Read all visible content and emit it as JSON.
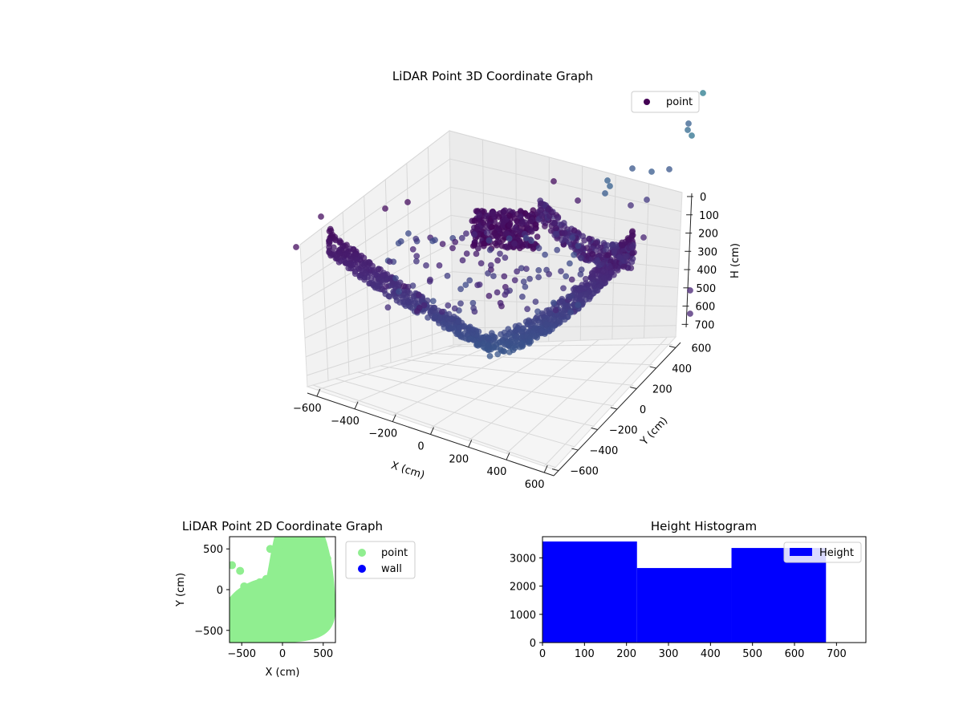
{
  "chart_data": [
    {
      "type": "scatter3d",
      "title": "LiDAR Point 3D Coordinate Graph",
      "xlabel": "X (cm)",
      "ylabel": "Y (cm)",
      "zlabel": "H (cm)",
      "xlim": [
        -650,
        650
      ],
      "ylim": [
        -650,
        650
      ],
      "zlim": [
        0,
        760
      ],
      "z_inverted": true,
      "xticks": [
        -600,
        -400,
        -200,
        0,
        200,
        400,
        600
      ],
      "yticks": [
        -600,
        -400,
        -200,
        0,
        200,
        400,
        600
      ],
      "zticks": [
        0,
        100,
        200,
        300,
        400,
        500,
        600,
        700
      ],
      "grid": true,
      "colormap": "viridis",
      "legend": {
        "position": "top-right",
        "entries": [
          {
            "label": "point",
            "color": "#440154"
          }
        ]
      },
      "series": [
        {
          "name": "point",
          "description_points": "dense curved band of points; scattered outliers toward upper right"
        }
      ]
    },
    {
      "type": "scatter",
      "title": "LiDAR Point 2D Coordinate Graph",
      "xlabel": "X (cm)",
      "ylabel": "Y (cm)",
      "xlim": [
        -650,
        650
      ],
      "ylim": [
        -650,
        650
      ],
      "xticks": [
        -500,
        0,
        500
      ],
      "yticks": [
        -500,
        0,
        500
      ],
      "legend": {
        "position": "outside-right",
        "entries": [
          {
            "label": "point",
            "color": "#90ee90"
          },
          {
            "label": "wall",
            "color": "#0000ff"
          }
        ]
      },
      "series": [
        {
          "name": "point",
          "color": "#90ee90",
          "points": [
            [
              -620,
              300
            ],
            [
              -520,
              230
            ],
            [
              -470,
              40
            ],
            [
              -280,
              90
            ],
            [
              -200,
              130
            ],
            [
              -150,
              500
            ],
            [
              -100,
              330
            ],
            [
              -60,
              250
            ],
            [
              -10,
              460
            ],
            [
              500,
              560
            ],
            [
              550,
              380
            ]
          ]
        },
        {
          "name": "wall",
          "color": "#0000ff",
          "points": []
        }
      ]
    },
    {
      "type": "histogram",
      "title": "Height Histogram",
      "xlim": [
        0,
        770
      ],
      "ylim": [
        0,
        3750
      ],
      "xticks": [
        0,
        100,
        200,
        300,
        400,
        500,
        600,
        700
      ],
      "yticks": [
        0,
        1000,
        2000,
        3000
      ],
      "color": "#0000ff",
      "legend": {
        "position": "top-right",
        "entries": [
          {
            "label": "Height",
            "color": "#0000ff"
          }
        ]
      },
      "bins": [
        {
          "x0": 0,
          "x1": 225,
          "count": 3580
        },
        {
          "x0": 225,
          "x1": 450,
          "count": 2640
        },
        {
          "x0": 450,
          "x1": 675,
          "count": 3350
        }
      ]
    }
  ]
}
